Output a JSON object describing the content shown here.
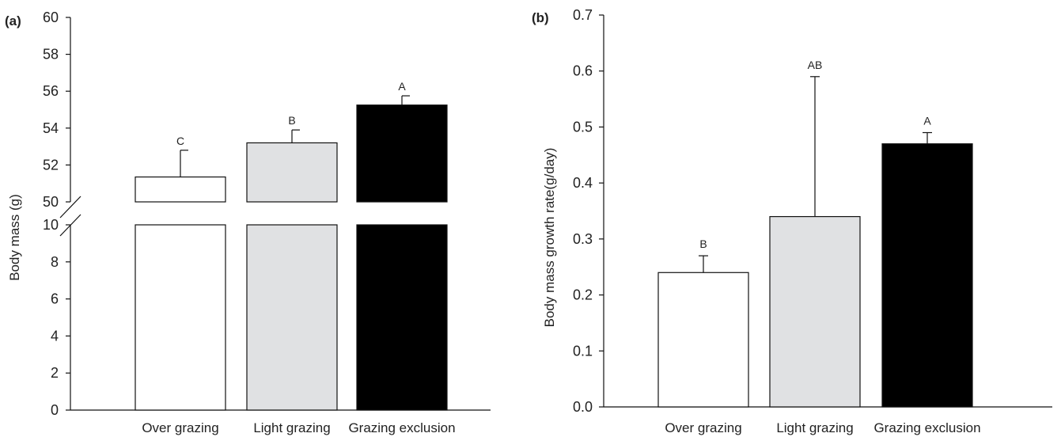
{
  "chart_data": [
    {
      "panel": "(a)",
      "type": "bar",
      "ylabel": "Body mass (g)",
      "categories": [
        "Over grazing",
        "Light grazing",
        "Grazing exclusion"
      ],
      "values": [
        51.35,
        53.2,
        55.25
      ],
      "errors": [
        1.45,
        0.7,
        0.5
      ],
      "letters": [
        "C",
        "B",
        "A"
      ],
      "colors": [
        "#ffffff",
        "#e0e1e3",
        "#000000"
      ],
      "broken_axis": true,
      "lower_segment": {
        "ylim": [
          0,
          10
        ],
        "ticks": [
          0,
          2,
          4,
          6,
          8,
          10
        ]
      },
      "upper_segment": {
        "ylim": [
          50,
          60
        ],
        "ticks": [
          50,
          52,
          54,
          56,
          58,
          60
        ]
      },
      "tick_labels": [
        "0",
        "2",
        "4",
        "6",
        "8",
        "10",
        "50",
        "52",
        "54",
        "56",
        "58",
        "60"
      ]
    },
    {
      "panel": "(b)",
      "type": "bar",
      "ylabel": "Body mass growth rate(g/day)",
      "categories": [
        "Over grazing",
        "Light grazing",
        "Grazing exclusion"
      ],
      "values": [
        0.24,
        0.34,
        0.47
      ],
      "errors": [
        0.03,
        0.25,
        0.02
      ],
      "letters": [
        "B",
        "AB",
        "A"
      ],
      "colors": [
        "#ffffff",
        "#e0e1e3",
        "#000000"
      ],
      "ylim": [
        0,
        0.7
      ],
      "ticks": [
        0,
        0.1,
        0.2,
        0.3,
        0.4,
        0.5,
        0.6,
        0.7
      ],
      "tick_labels": [
        "0.0",
        "0.1",
        "0.2",
        "0.3",
        "0.4",
        "0.5",
        "0.6",
        "0.7"
      ]
    }
  ]
}
